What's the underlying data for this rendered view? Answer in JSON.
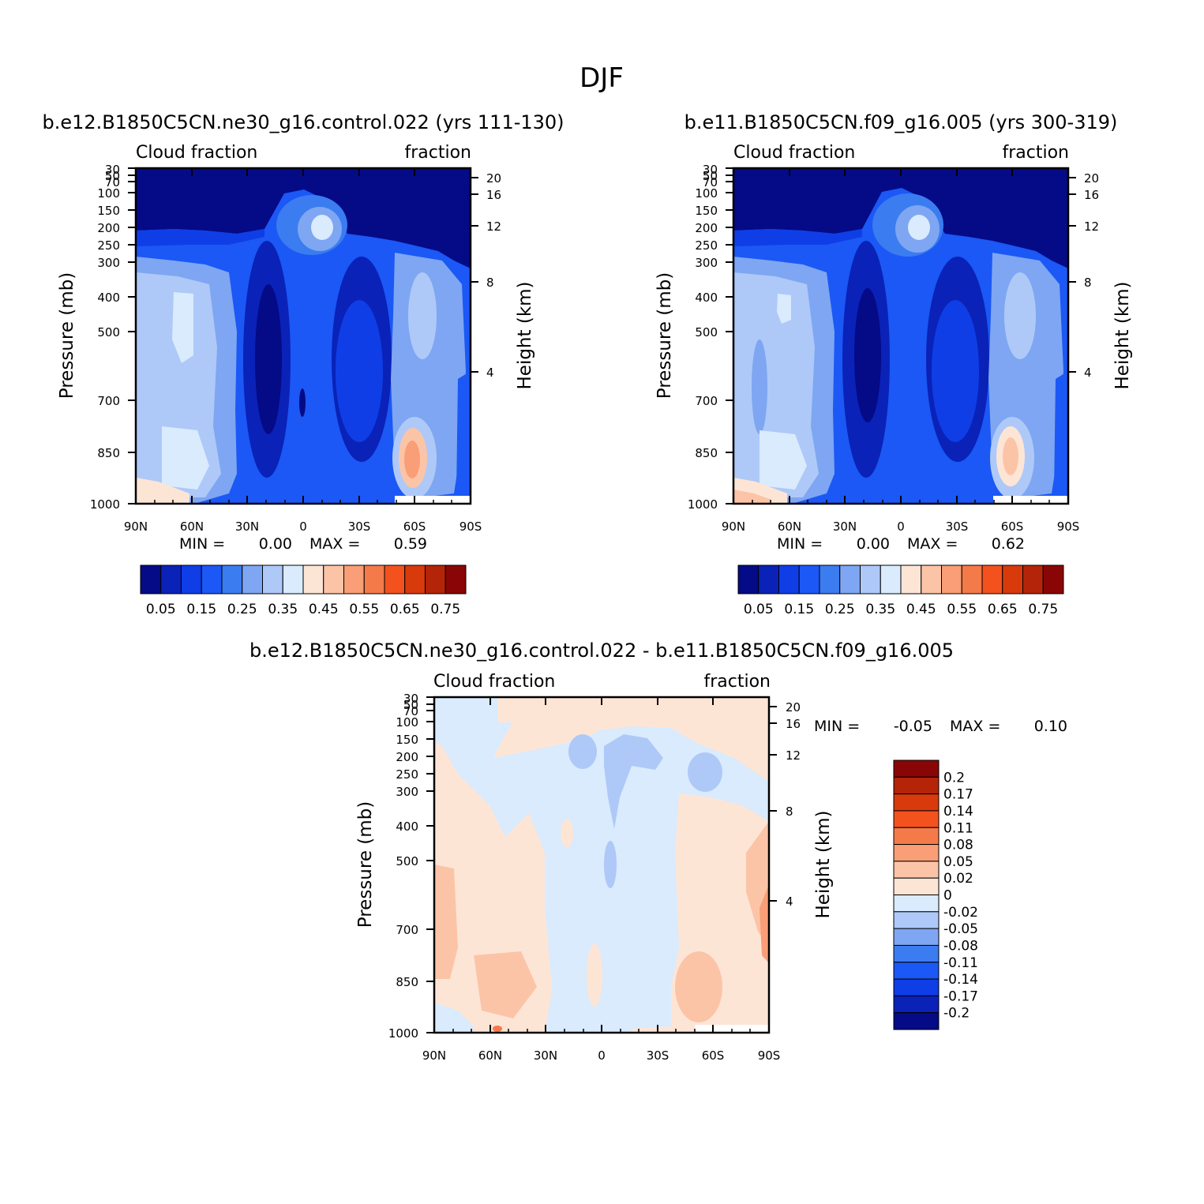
{
  "page_title": "DJF",
  "chart_data": [
    {
      "type": "heatmap",
      "title": "b.e12.B1850C5CN.ne30_g16.control.022 (yrs 111-130)",
      "left_string": "Cloud fraction",
      "right_string": "fraction",
      "xlabel": "",
      "ylabel": "Pressure (mb)",
      "y2label": "Height (km)",
      "xticks": [
        "90N",
        "60N",
        "30N",
        "0",
        "30S",
        "60S",
        "90S"
      ],
      "yticks": [
        "30",
        "50",
        "70",
        "100",
        "150",
        "200",
        "250",
        "300",
        "400",
        "500",
        "700",
        "850",
        "1000"
      ],
      "y2ticks": [
        "20",
        "16",
        "12",
        "8",
        "4"
      ],
      "min_text": "MIN =",
      "min_value": "0.00",
      "max_text": "MAX =",
      "max_value": "0.59",
      "colorbar_labels": [
        "0.05",
        "0.15",
        "0.25",
        "0.35",
        "0.45",
        "0.55",
        "0.65",
        "0.75"
      ],
      "colorbar_colors": [
        "#050a86",
        "#0a22b8",
        "#0f3ee6",
        "#1b58f5",
        "#3b7cf0",
        "#7ea6f2",
        "#aec9f8",
        "#d9ebfd",
        "#fde5d6",
        "#fcc4a7",
        "#f99e76",
        "#f57a49",
        "#f3521e",
        "#d93a0b",
        "#b32408",
        "#8a0606"
      ]
    },
    {
      "type": "heatmap",
      "title": "b.e11.B1850C5CN.f09_g16.005 (yrs 300-319)",
      "left_string": "Cloud fraction",
      "right_string": "fraction",
      "xlabel": "",
      "ylabel": "Pressure (mb)",
      "y2label": "Height (km)",
      "xticks": [
        "90N",
        "60N",
        "30N",
        "0",
        "30S",
        "60S",
        "90S"
      ],
      "yticks": [
        "30",
        "50",
        "70",
        "100",
        "150",
        "200",
        "250",
        "300",
        "400",
        "500",
        "700",
        "850",
        "1000"
      ],
      "y2ticks": [
        "20",
        "16",
        "12",
        "8",
        "4"
      ],
      "min_text": "MIN =",
      "min_value": "0.00",
      "max_text": "MAX =",
      "max_value": "0.62",
      "colorbar_labels": [
        "0.05",
        "0.15",
        "0.25",
        "0.35",
        "0.45",
        "0.55",
        "0.65",
        "0.75"
      ],
      "colorbar_colors": [
        "#050a86",
        "#0a22b8",
        "#0f3ee6",
        "#1b58f5",
        "#3b7cf0",
        "#7ea6f2",
        "#aec9f8",
        "#d9ebfd",
        "#fde5d6",
        "#fcc4a7",
        "#f99e76",
        "#f57a49",
        "#f3521e",
        "#d93a0b",
        "#b32408",
        "#8a0606"
      ]
    },
    {
      "type": "heatmap",
      "title": "b.e12.B1850C5CN.ne30_g16.control.022 - b.e11.B1850C5CN.f09_g16.005",
      "left_string": "Cloud fraction",
      "right_string": "fraction",
      "xlabel": "",
      "ylabel": "Pressure (mb)",
      "y2label": "Height (km)",
      "xticks": [
        "90N",
        "60N",
        "30N",
        "0",
        "30S",
        "60S",
        "90S"
      ],
      "yticks": [
        "30",
        "50",
        "70",
        "100",
        "150",
        "200",
        "250",
        "300",
        "400",
        "500",
        "700",
        "850",
        "1000"
      ],
      "y2ticks": [
        "20",
        "16",
        "12",
        "8",
        "4"
      ],
      "min_text": "MIN =",
      "min_value": "-0.05",
      "max_text": "MAX =",
      "max_value": "0.10",
      "colorbar_labels": [
        "0.2",
        "0.17",
        "0.14",
        "0.11",
        "0.08",
        "0.05",
        "0.02",
        "0",
        "-0.02",
        "-0.05",
        "-0.08",
        "-0.11",
        "-0.14",
        "-0.17",
        "-0.2"
      ],
      "colorbar_colors": [
        "#8a0606",
        "#b32408",
        "#d93a0b",
        "#f3521e",
        "#f57a49",
        "#f99e76",
        "#fcc4a7",
        "#fde5d6",
        "#d9ebfd",
        "#aec9f8",
        "#7ea6f2",
        "#3b7cf0",
        "#1b58f5",
        "#0f3ee6",
        "#0a22b8",
        "#050a86"
      ]
    }
  ]
}
